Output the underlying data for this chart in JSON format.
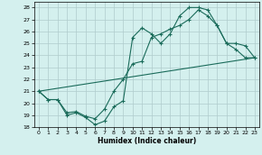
{
  "xlabel": "Humidex (Indice chaleur)",
  "background_color": "#d4f0ee",
  "grid_color": "#b0cccc",
  "line_color": "#1a6b5a",
  "xlim": [
    -0.5,
    23.5
  ],
  "ylim": [
    18,
    28.5
  ],
  "yticks": [
    18,
    19,
    20,
    21,
    22,
    23,
    24,
    25,
    26,
    27,
    28
  ],
  "xticks": [
    0,
    1,
    2,
    3,
    4,
    5,
    6,
    7,
    8,
    9,
    10,
    11,
    12,
    13,
    14,
    15,
    16,
    17,
    18,
    19,
    20,
    21,
    22,
    23
  ],
  "line1_x": [
    0,
    1,
    2,
    3,
    4,
    5,
    6,
    7,
    8,
    9,
    10,
    11,
    12,
    13,
    14,
    15,
    16,
    17,
    18,
    19,
    20,
    21,
    22,
    23
  ],
  "line1_y": [
    21.0,
    20.3,
    20.3,
    19.0,
    19.2,
    18.8,
    18.2,
    18.5,
    19.7,
    20.2,
    25.5,
    26.3,
    25.8,
    25.0,
    25.8,
    27.3,
    28.0,
    28.0,
    27.8,
    26.5,
    25.0,
    24.5,
    23.8,
    23.8
  ],
  "line2_x": [
    0,
    1,
    2,
    3,
    4,
    5,
    6,
    7,
    8,
    9,
    10,
    11,
    12,
    13,
    14,
    15,
    16,
    17,
    18,
    19,
    20,
    21,
    22,
    23
  ],
  "line2_y": [
    21.0,
    20.3,
    20.3,
    19.2,
    19.3,
    18.9,
    18.7,
    19.5,
    21.0,
    22.0,
    23.3,
    23.5,
    25.5,
    25.8,
    26.2,
    26.5,
    27.0,
    27.8,
    27.3,
    26.5,
    25.0,
    25.0,
    24.8,
    23.8
  ],
  "line3_x": [
    0,
    23
  ],
  "line3_y": [
    21.0,
    23.8
  ]
}
